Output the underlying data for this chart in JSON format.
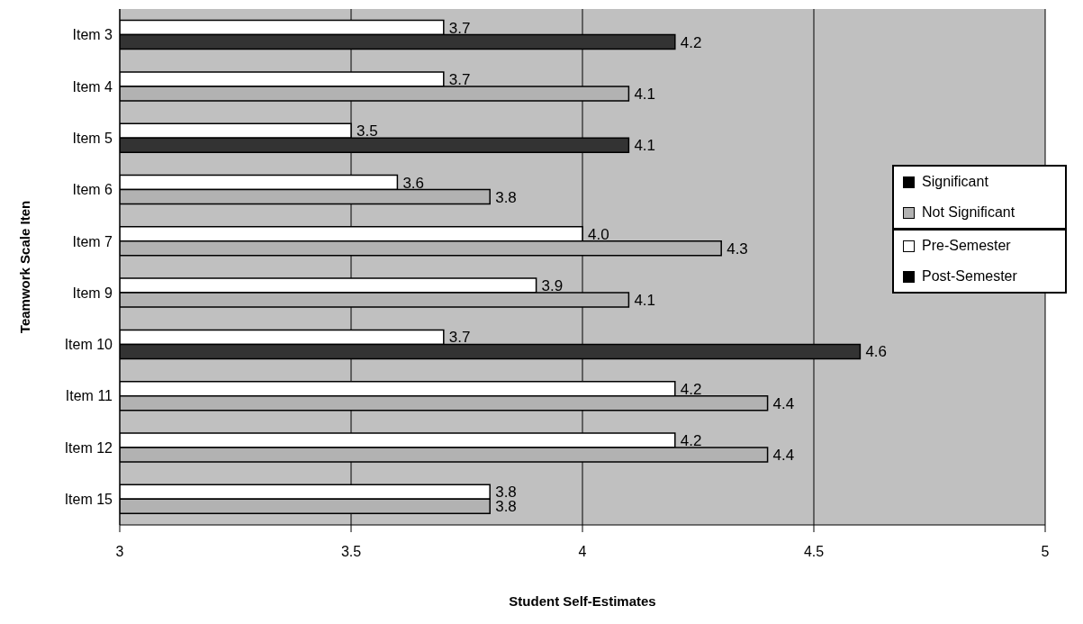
{
  "chart_data": {
    "type": "bar",
    "orientation": "horizontal",
    "xlabel": "Student Self-Estimates",
    "ylabel": "Teamwork Scale Iten",
    "categories": [
      "Item 3",
      "Item 4",
      "Item 5",
      "Item 6",
      "Item 7",
      "Item 9",
      "Item 10",
      "Item 11",
      "Item 12",
      "Item 15"
    ],
    "series": [
      {
        "name": "Significant",
        "color": "#000000",
        "values": [
          null,
          null,
          null,
          null,
          null,
          null,
          null,
          null,
          null,
          null
        ]
      },
      {
        "name": "Not Significant",
        "color": "#b2b2b2",
        "values": [
          null,
          null,
          null,
          null,
          null,
          null,
          null,
          null,
          null,
          null
        ]
      },
      {
        "name": "Pre-Semester",
        "color": "#ffffff",
        "values": [
          3.7,
          3.7,
          3.5,
          3.6,
          4.0,
          3.9,
          3.7,
          4.2,
          4.2,
          3.8
        ],
        "value_labels": [
          "3.7",
          "3.7",
          "3.5",
          "3.6",
          "4.0",
          "3.9",
          "3.7",
          "4.2",
          "4.2",
          "3.8"
        ]
      },
      {
        "name": "Post-Semester",
        "color": "#000000",
        "colors": [
          "#333333",
          "#b2b2b2",
          "#333333",
          "#b2b2b2",
          "#b2b2b2",
          "#b2b2b2",
          "#333333",
          "#b2b2b2",
          "#b2b2b2",
          "#b2b2b2"
        ],
        "values": [
          4.2,
          4.1,
          4.1,
          3.8,
          4.3,
          4.1,
          4.6,
          4.4,
          4.4,
          3.8
        ],
        "value_labels": [
          "4.2",
          "4.1",
          "4.1",
          "3.8",
          "4.3",
          "4.1",
          "4.6",
          "4.4",
          "4.4",
          "3.8"
        ]
      }
    ],
    "xlim": [
      3,
      5
    ],
    "xticks": [
      3,
      3.5,
      4,
      4.5,
      5
    ],
    "grid": "x",
    "legend": "right"
  }
}
